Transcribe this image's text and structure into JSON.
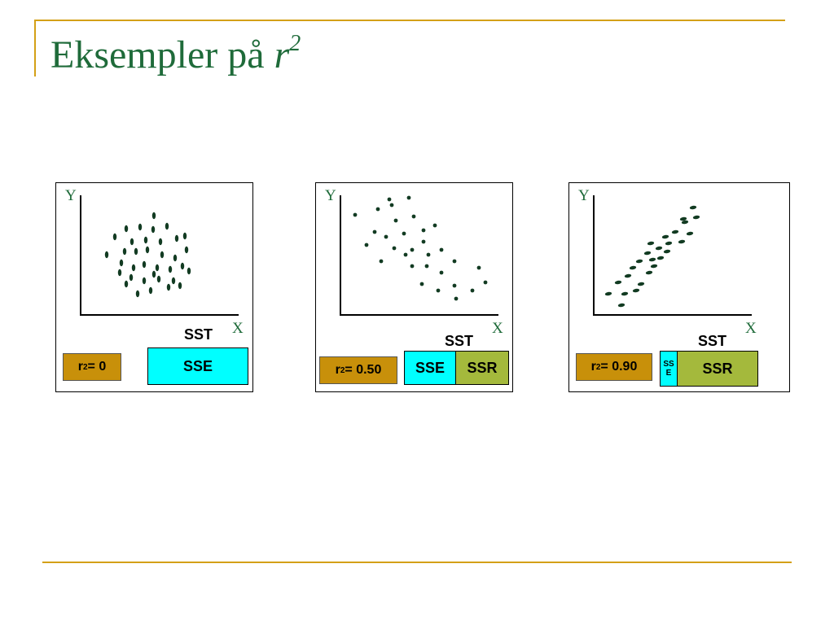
{
  "title": {
    "text": "Eksempler på ",
    "var": "r",
    "exp": "2"
  },
  "colors": {
    "accent": "#d4a017",
    "title": "#1f6b3a",
    "sse": "#00ffff",
    "ssr": "#a4b93c",
    "r2_box": "#c8900a"
  },
  "panels": [
    {
      "y_label": "Y",
      "x_label": "X",
      "sst_label": "SST",
      "r2_prefix": "r",
      "r2_exp": "2",
      "r2_value": " = 0",
      "sse_label": "SSE",
      "ssr_label": "",
      "sse_fraction": 1.0
    },
    {
      "y_label": "Y",
      "x_label": "X",
      "sst_label": "SST",
      "r2_prefix": "r",
      "r2_exp": "2",
      "r2_value": " = 0.50",
      "sse_label": "SSE",
      "ssr_label": "SSR",
      "sse_fraction": 0.5
    },
    {
      "y_label": "Y",
      "x_label": "X",
      "sst_label": "SST",
      "r2_prefix": "r",
      "r2_exp": "2",
      "r2_value": " = 0.90",
      "sse_label": "SSE",
      "ssr_label": "SSR",
      "sse_fraction": 0.1
    }
  ]
}
